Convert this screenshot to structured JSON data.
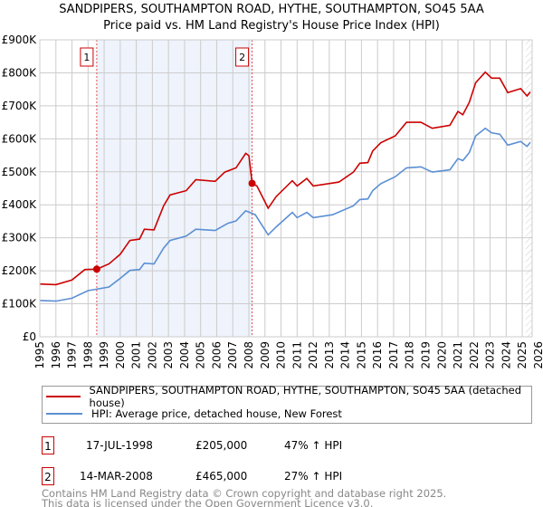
{
  "title_line1": "SANDPIPERS, SOUTHAMPTON ROAD, HYTHE, SOUTHAMPTON, SO45 5AA",
  "title_line2": "Price paid vs. HM Land Registry's House Price Index (HPI)",
  "colors": {
    "property": "#cc0000",
    "hpi": "#5b8fd4",
    "shade": "#eef3fc"
  },
  "chart_data": {
    "type": "line",
    "title": "Price paid vs. HM Land Registry's House Price Index (HPI)",
    "xlim": [
      1995,
      2025.6
    ],
    "ylim": [
      0,
      900000
    ],
    "y_ticks": [
      {
        "v": 0,
        "label": "£0"
      },
      {
        "v": 100000,
        "label": "£100K"
      },
      {
        "v": 200000,
        "label": "£200K"
      },
      {
        "v": 300000,
        "label": "£300K"
      },
      {
        "v": 400000,
        "label": "£400K"
      },
      {
        "v": 500000,
        "label": "£500K"
      },
      {
        "v": 600000,
        "label": "£600K"
      },
      {
        "v": 700000,
        "label": "£700K"
      },
      {
        "v": 800000,
        "label": "£800K"
      },
      {
        "v": 900000,
        "label": "£900K"
      }
    ],
    "x_ticks": [
      "1995",
      "1996",
      "1997",
      "1998",
      "1999",
      "2000",
      "2001",
      "2002",
      "2003",
      "2004",
      "2005",
      "2006",
      "2007",
      "2008",
      "2009",
      "2010",
      "2011",
      "2012",
      "2013",
      "2014",
      "2015",
      "2016",
      "2017",
      "2018",
      "2019",
      "2020",
      "2021",
      "2022",
      "2023",
      "2024",
      "2025",
      "2026"
    ],
    "grid": true,
    "series": [
      {
        "name": "SANDPIPERS, SOUTHAMPTON ROAD, HYTHE, SOUTHAMPTON, SO45 5AA (detached house)",
        "x": [
          1995,
          1996,
          1997,
          1997.8,
          1998.54,
          1999.3,
          2000,
          2000.6,
          2001.2,
          2001.5,
          2002.1,
          2002.7,
          2003.1,
          2004.1,
          2004.7,
          2005.9,
          2006.5,
          2007.2,
          2007.8,
          2008.0,
          2008.2,
          2008.5,
          2009.2,
          2009.7,
          2010.7,
          2011,
          2011.6,
          2012,
          2013.2,
          2013.6,
          2014.5,
          2014.9,
          2015.4,
          2015.7,
          2016.2,
          2017.1,
          2017.8,
          2018.7,
          2019.4,
          2020.5,
          2021,
          2021.3,
          2021.7,
          2022.1,
          2022.7,
          2023.1,
          2023.6,
          2024.1,
          2024.9,
          2025.3,
          2025.5
        ],
        "y": [
          160,
          158,
          172,
          204,
          205,
          221,
          250,
          292,
          296,
          326,
          324,
          397,
          430,
          443,
          476,
          471,
          499,
          512,
          556,
          549,
          465,
          457,
          390,
          425,
          473,
          457,
          480,
          457,
          466,
          469,
          499,
          526,
          528,
          563,
          588,
          609,
          650,
          650,
          632,
          641,
          683,
          673,
          710,
          770,
          802,
          784,
          784,
          740,
          752,
          730,
          742
        ]
      },
      {
        "name": "HPI: Average price, detached house, New Forest",
        "x": [
          1995,
          1996,
          1997,
          1998,
          1998.5,
          1999.3,
          2000,
          2000.6,
          2001.2,
          2001.5,
          2002.1,
          2002.7,
          2003.1,
          2004.1,
          2004.7,
          2005.9,
          2006.7,
          2007.2,
          2007.8,
          2008.4,
          2009.2,
          2009.7,
          2010.7,
          2011,
          2011.6,
          2012,
          2013.2,
          2014.5,
          2014.9,
          2015.4,
          2015.7,
          2016.2,
          2017.1,
          2017.8,
          2018.7,
          2019.4,
          2020.5,
          2021,
          2021.3,
          2021.7,
          2022.1,
          2022.7,
          2023.1,
          2023.6,
          2024.1,
          2024.9,
          2025.3,
          2025.5
        ],
        "y": [
          110,
          108,
          117,
          140,
          144,
          151,
          177,
          201,
          204,
          223,
          221,
          269,
          292,
          305,
          326,
          322,
          344,
          351,
          382,
          370,
          309,
          333,
          377,
          361,
          377,
          361,
          370,
          397,
          416,
          418,
          443,
          464,
          485,
          512,
          515,
          499,
          506,
          540,
          534,
          558,
          609,
          632,
          618,
          614,
          581,
          592,
          577,
          589
        ]
      }
    ],
    "y_units": "thousands GBP",
    "sales": [
      {
        "id": "1",
        "x": 1998.54,
        "y": 205
      },
      {
        "id": "2",
        "x": 2008.2,
        "y": 465
      }
    ],
    "legend_placement": "below"
  },
  "legend": {
    "property": "SANDPIPERS, SOUTHAMPTON ROAD, HYTHE, SOUTHAMPTON, SO45 5AA (detached house)",
    "hpi": "HPI: Average price, detached house, New Forest"
  },
  "transactions": [
    {
      "id": "1",
      "date": "17-JUL-1998",
      "price": "£205,000",
      "hpi": "47% ↑ HPI"
    },
    {
      "id": "2",
      "date": "14-MAR-2008",
      "price": "£465,000",
      "hpi": "27% ↑ HPI"
    }
  ],
  "footer_line1": "Contains HM Land Registry data © Crown copyright and database right 2025.",
  "footer_line2": "This data is licensed under the Open Government Licence v3.0."
}
